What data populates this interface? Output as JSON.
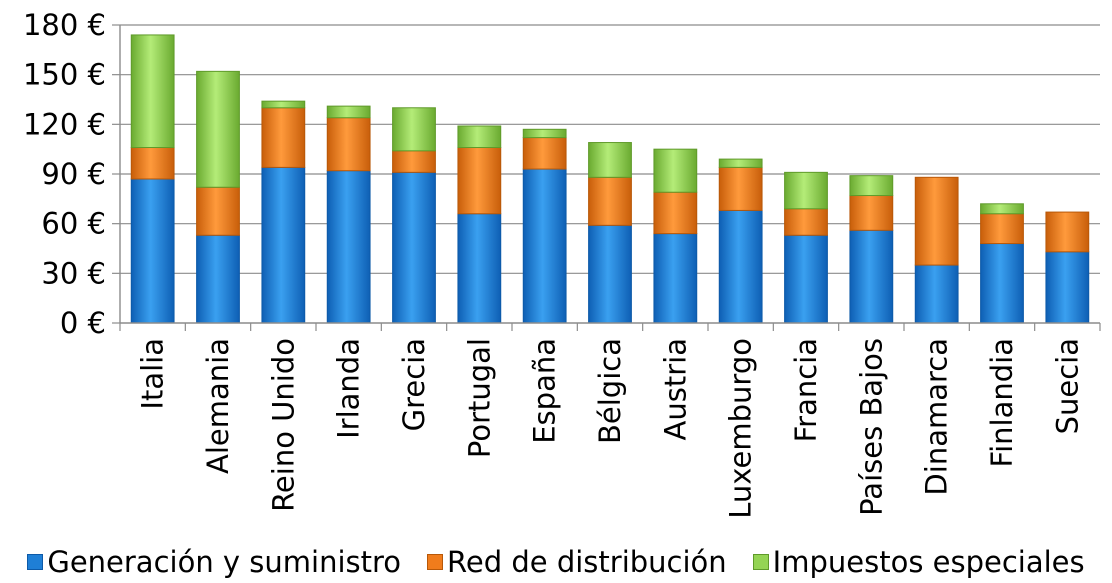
{
  "chart_data": {
    "type": "bar",
    "stacked": true,
    "title": "",
    "xlabel": "",
    "ylabel": "",
    "ylim": [
      0,
      180
    ],
    "yticks": [
      "0 €",
      "30 €",
      "60 €",
      "90 €",
      "120 €",
      "150 €",
      "180 €"
    ],
    "ytick_values": [
      0,
      30,
      60,
      90,
      120,
      150,
      180
    ],
    "grid": true,
    "legend_position": "bottom",
    "categories": [
      "Italia",
      "Alemania",
      "Reino Unido",
      "Irlanda",
      "Grecia",
      "Portugal",
      "España",
      "Bélgica",
      "Austria",
      "Luxemburgo",
      "Francia",
      "Países Bajos",
      "Dinamarca",
      "Finlandia",
      "Suecia"
    ],
    "series": [
      {
        "name": "Generación y suministro",
        "color": "#1f7fd6",
        "values": [
          87,
          53,
          94,
          92,
          91,
          66,
          93,
          59,
          54,
          68,
          53,
          56,
          35,
          48,
          43
        ]
      },
      {
        "name": "Red de distribución",
        "color": "#f07c1c",
        "values": [
          19,
          29,
          36,
          32,
          13,
          40,
          19,
          29,
          25,
          26,
          16,
          21,
          53,
          18,
          24
        ]
      },
      {
        "name": "Impuestos especiales",
        "color": "#94d454",
        "values": [
          68,
          70,
          4,
          7,
          26,
          13,
          5,
          21,
          26,
          5,
          22,
          12,
          0,
          6,
          0
        ]
      }
    ]
  }
}
